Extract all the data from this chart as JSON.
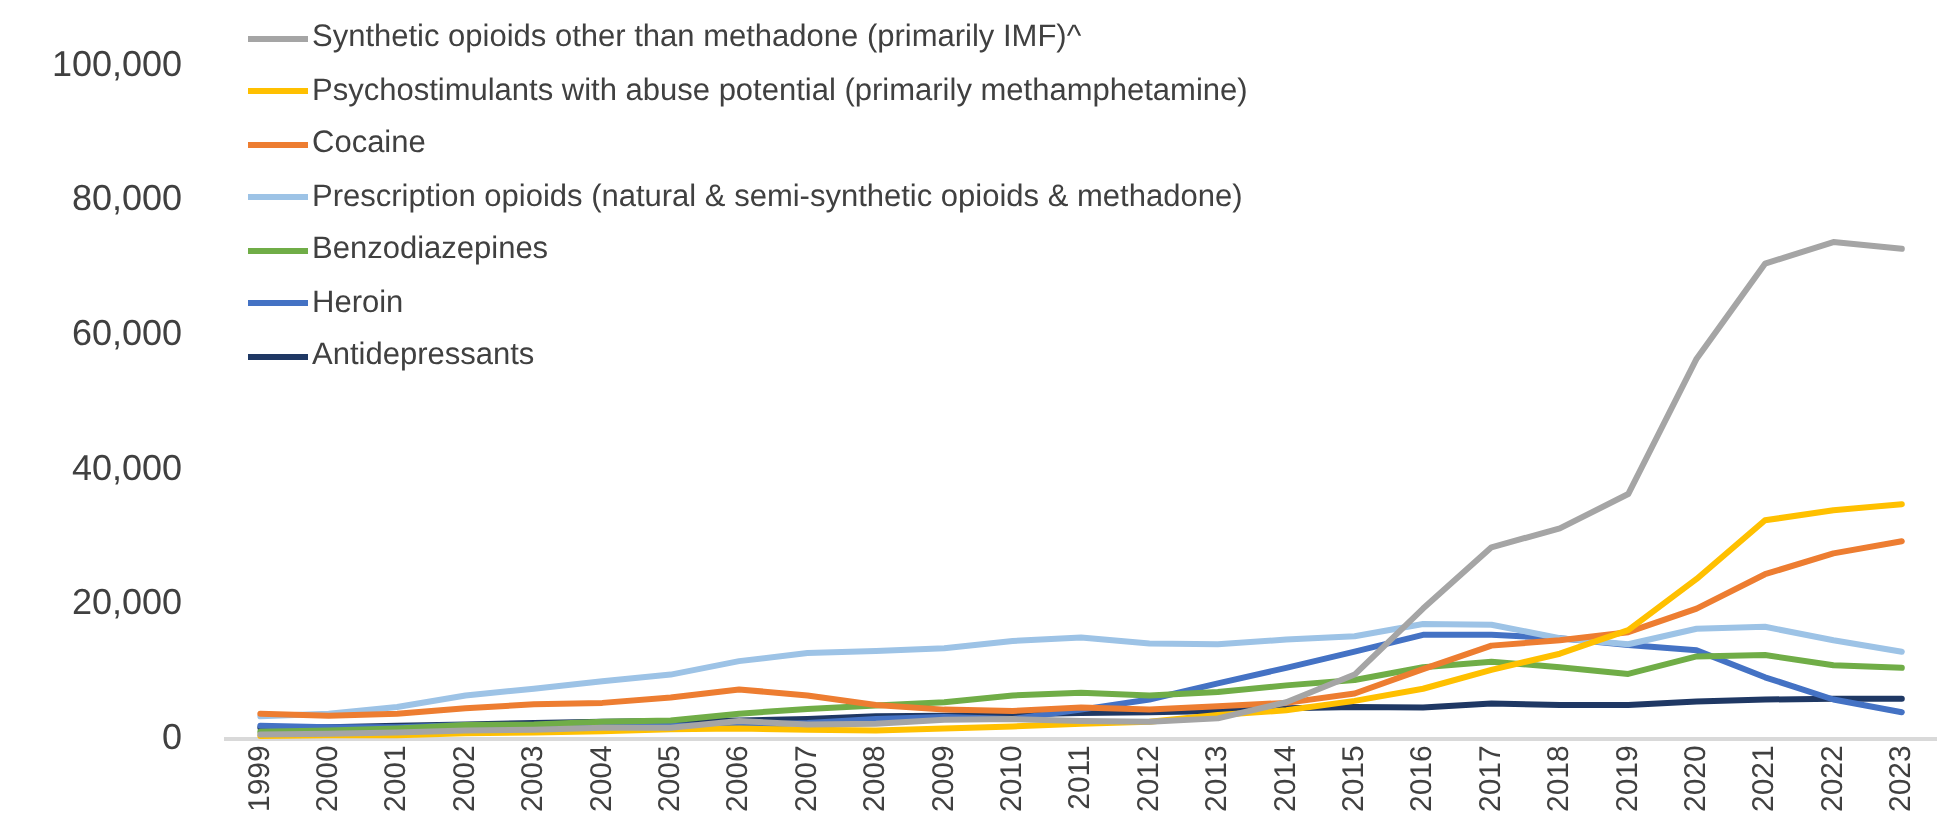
{
  "chart_data": {
    "type": "line",
    "categories": [
      "1999",
      "2000",
      "2001",
      "2002",
      "2003",
      "2004",
      "2005",
      "2006",
      "2007",
      "2008",
      "2009",
      "2010",
      "2011",
      "2012",
      "2013",
      "2014",
      "2015",
      "2016",
      "2017",
      "2018",
      "2019",
      "2020",
      "2021",
      "2022",
      "2023"
    ],
    "ylim": [
      0,
      100000
    ],
    "yticks": [
      {
        "value": 0,
        "label": "0"
      },
      {
        "value": 20000,
        "label": "20,000"
      },
      {
        "value": 40000,
        "label": "40,000"
      },
      {
        "value": 60000,
        "label": "60,000"
      },
      {
        "value": 80000,
        "label": "80,000"
      },
      {
        "value": 100000,
        "label": "100,000"
      }
    ],
    "grid": false,
    "legend": "top left",
    "marker": "none",
    "line_style": "solid",
    "series": [
      {
        "name": "Synthetic opioids other than methadone (primarily IMF)^",
        "color": "#a5a5a5",
        "values": [
          700,
          800,
          1000,
          1300,
          1400,
          1700,
          1700,
          2700,
          2200,
          2300,
          2900,
          3000,
          2700,
          2600,
          3100,
          5500,
          9600,
          19400,
          28500,
          31300,
          36400,
          56500,
          70600,
          73800,
          72800
        ]
      },
      {
        "name": "Psychostimulants with abuse potential (primarily methamphetamine)",
        "color": "#ffc000",
        "values": [
          500,
          600,
          600,
          900,
          1000,
          1200,
          1500,
          1600,
          1400,
          1300,
          1600,
          1900,
          2300,
          2600,
          3600,
          4300,
          5700,
          7500,
          10300,
          12700,
          16200,
          23800,
          32500,
          34000,
          34900
        ]
      },
      {
        "name": "Cocaine",
        "color": "#ed7d31",
        "values": [
          3800,
          3500,
          3800,
          4600,
          5200,
          5400,
          6200,
          7400,
          6500,
          5100,
          4400,
          4200,
          4700,
          4400,
          4900,
          5400,
          6800,
          10400,
          13900,
          14700,
          15900,
          19400,
          24500,
          27600,
          29400
        ]
      },
      {
        "name": "Prescription opioids (natural & semi-synthetic opioids & methadone)",
        "color": "#9dc3e6",
        "values": [
          3400,
          3800,
          4800,
          6500,
          7500,
          8600,
          9600,
          11600,
          12800,
          13100,
          13500,
          14600,
          15100,
          14200,
          14100,
          14800,
          15300,
          17100,
          17000,
          15000,
          14100,
          16400,
          16700,
          14700,
          13000
        ]
      },
      {
        "name": "Benzodiazepines",
        "color": "#70ad47",
        "values": [
          1100,
          1300,
          1600,
          2100,
          2200,
          2600,
          2800,
          3800,
          4500,
          5000,
          5500,
          6500,
          6900,
          6500,
          7000,
          8000,
          8800,
          10700,
          11500,
          10700,
          9700,
          12300,
          12500,
          11000,
          10600
        ]
      },
      {
        "name": "Heroin",
        "color": "#4472c4",
        "values": [
          2000,
          1800,
          1800,
          2100,
          2100,
          1900,
          2000,
          2100,
          2400,
          3000,
          3300,
          3000,
          4400,
          5900,
          8300,
          10600,
          13000,
          15500,
          15500,
          15000,
          14000,
          13200,
          9200,
          5900,
          4000
        ]
      },
      {
        "name": "Antidepressants",
        "color": "#1f3864",
        "values": [
          1700,
          1800,
          2000,
          2200,
          2400,
          2600,
          2700,
          2800,
          3000,
          3400,
          3500,
          3700,
          3900,
          4000,
          4200,
          4600,
          4800,
          4700,
          5300,
          5100,
          5100,
          5600,
          5900,
          6000,
          6000
        ]
      }
    ]
  }
}
